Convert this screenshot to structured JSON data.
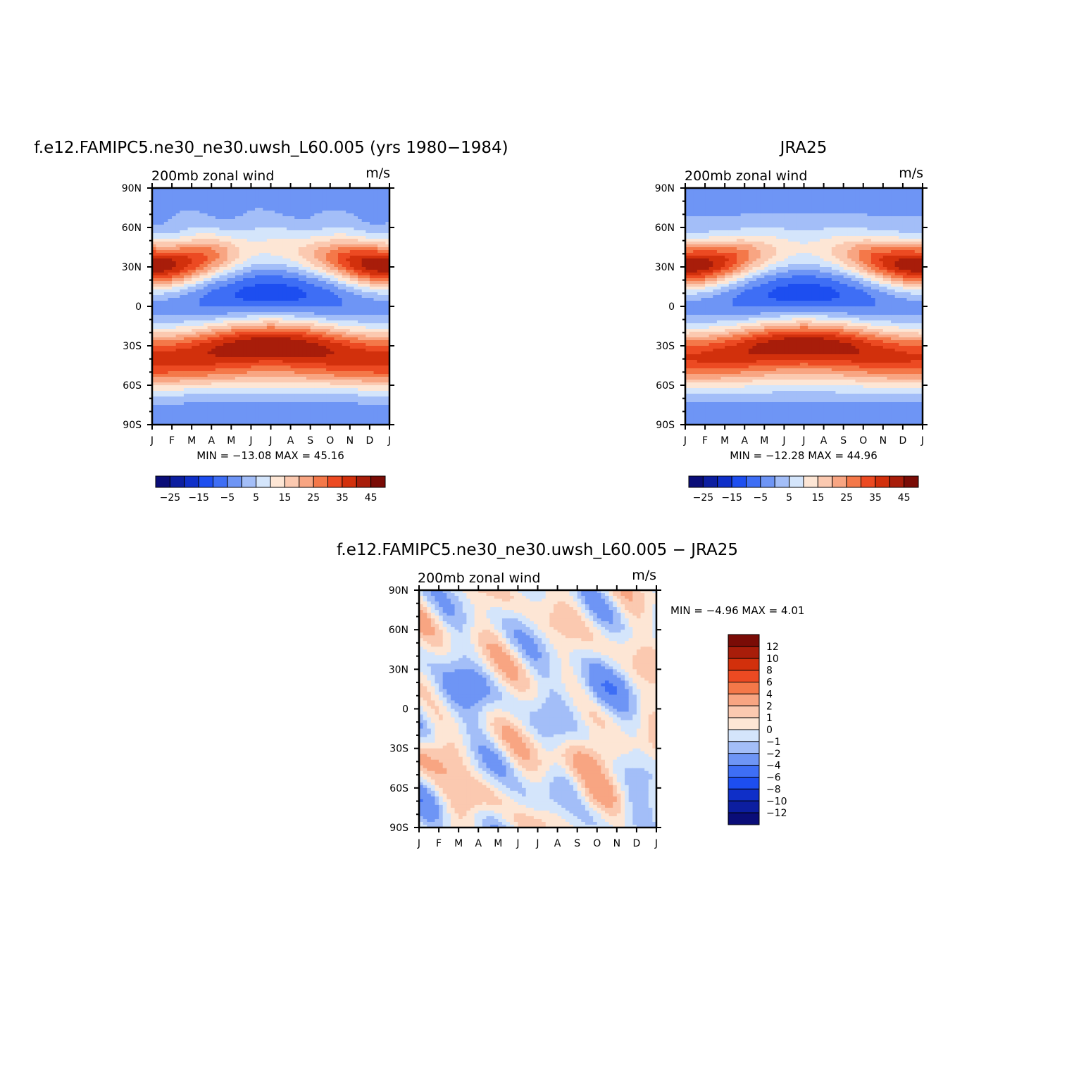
{
  "panels": [
    {
      "id": "model",
      "title": "f.e12.FAMIPC5.ne30_ne30.uwsh_L60.005 (yrs 1980−1984)",
      "left_label": "200mb zonal wind",
      "right_label": "m/s",
      "min_max": "MIN = −13.08 MAX = 45.16"
    },
    {
      "id": "obs",
      "title": "JRA25",
      "left_label": "200mb zonal wind",
      "right_label": "m/s",
      "min_max": "MIN = −12.28 MAX = 44.96"
    },
    {
      "id": "diff",
      "title": "f.e12.FAMIPC5.ne30_ne30.uwsh_L60.005 − JRA25",
      "left_label": "200mb zonal wind",
      "right_label": "m/s",
      "min_max": "MIN = −4.96 MAX = 4.01"
    }
  ],
  "axes": {
    "y_ticks": [
      "90N",
      "60N",
      "30N",
      "0",
      "30S",
      "60S",
      "90S"
    ],
    "x_ticks": [
      "J",
      "F",
      "M",
      "A",
      "M",
      "J",
      "J",
      "A",
      "S",
      "O",
      "N",
      "D",
      "J"
    ]
  },
  "colorbar_full": {
    "colors": [
      "#0a0d78",
      "#0c1ea0",
      "#0f2fc8",
      "#1d4ef0",
      "#3e6ef5",
      "#6e95f5",
      "#a3bef8",
      "#d4e5fb",
      "#fde6d5",
      "#fbc9b0",
      "#f8a582",
      "#f47849",
      "#ec4a22",
      "#d2300c",
      "#a81d0a",
      "#7a0c06"
    ],
    "labels": [
      "−25",
      "−15",
      "−5",
      "5",
      "15",
      "25",
      "35",
      "45"
    ]
  },
  "colorbar_diff": {
    "colors_top_to_bottom": [
      "#7a0c06",
      "#a81d0a",
      "#d2300c",
      "#ec4a22",
      "#f47849",
      "#f8a582",
      "#fbc9b0",
      "#fde6d5",
      "#d4e5fb",
      "#a3bef8",
      "#6e95f5",
      "#3e6ef5",
      "#1d4ef0",
      "#0f2fc8",
      "#0c1ea0",
      "#0a0d78"
    ],
    "labels": [
      "12",
      "10",
      "8",
      "6",
      "4",
      "2",
      "1",
      "0",
      "−1",
      "−2",
      "−4",
      "−6",
      "−8",
      "−10",
      "−12"
    ]
  },
  "chart_data": [
    {
      "type": "heatmap",
      "title": "f.e12.FAMIPC5.ne30_ne30.uwsh_L60.005 (yrs 1980−1984)",
      "xlabel": "",
      "ylabel": "",
      "x": [
        "J",
        "F",
        "M",
        "A",
        "M",
        "J",
        "J",
        "A",
        "S",
        "O",
        "N",
        "D",
        "J"
      ],
      "y": [
        "90N",
        "60N",
        "30N",
        "0",
        "30S",
        "60S",
        "90S"
      ],
      "units": "m/s",
      "min": -13.08,
      "max": 45.16,
      "levels": [
        -25,
        -20,
        -15,
        -10,
        -5,
        0,
        5,
        10,
        15,
        20,
        25,
        30,
        35,
        40,
        45
      ],
      "features": {
        "nh_jet_lat": 30,
        "nh_jet_winter_max": 45,
        "nh_jet_summer_max": 15,
        "sh_jet_lat": -30,
        "sh_jet_winter_max": 45,
        "tropical_easterly_min": -13,
        "tropical_easterly_peak_month": "J"
      }
    },
    {
      "type": "heatmap",
      "title": "JRA25",
      "xlabel": "",
      "ylabel": "",
      "x": [
        "J",
        "F",
        "M",
        "A",
        "M",
        "J",
        "J",
        "A",
        "S",
        "O",
        "N",
        "D",
        "J"
      ],
      "y": [
        "90N",
        "60N",
        "30N",
        "0",
        "30S",
        "60S",
        "90S"
      ],
      "units": "m/s",
      "min": -12.28,
      "max": 44.96,
      "levels": [
        -25,
        -20,
        -15,
        -10,
        -5,
        0,
        5,
        10,
        15,
        20,
        25,
        30,
        35,
        40,
        45
      ],
      "features": {
        "nh_jet_lat": 30,
        "nh_jet_winter_max": 45,
        "nh_jet_summer_max": 15,
        "sh_jet_lat": -30,
        "sh_jet_winter_max": 44,
        "tropical_easterly_min": -12,
        "tropical_easterly_peak_month": "J"
      }
    },
    {
      "type": "heatmap",
      "title": "f.e12.FAMIPC5.ne30_ne30.uwsh_L60.005 − JRA25",
      "xlabel": "",
      "ylabel": "",
      "x": [
        "J",
        "F",
        "M",
        "A",
        "M",
        "J",
        "J",
        "A",
        "S",
        "O",
        "N",
        "D",
        "J"
      ],
      "y": [
        "90N",
        "60N",
        "30N",
        "0",
        "30S",
        "60S",
        "90S"
      ],
      "units": "m/s",
      "min": -4.96,
      "max": 4.01,
      "levels": [
        -12,
        -10,
        -8,
        -6,
        -4,
        -2,
        -1,
        0,
        1,
        2,
        4,
        6,
        8,
        10,
        12
      ]
    }
  ]
}
